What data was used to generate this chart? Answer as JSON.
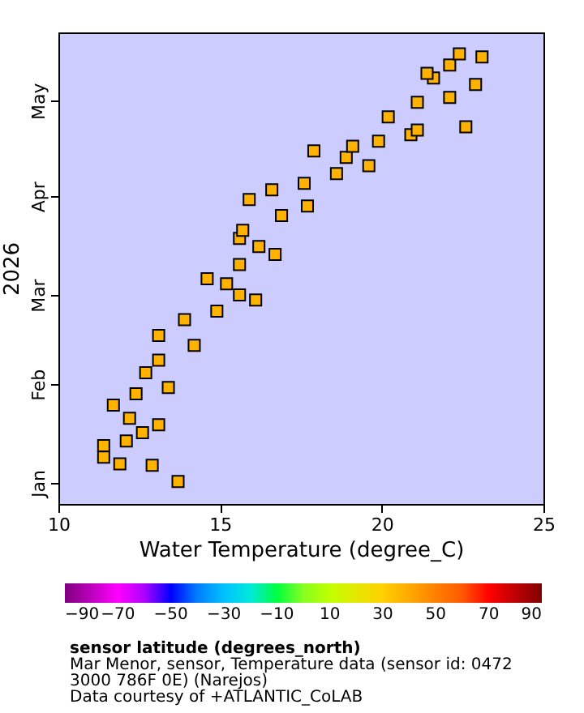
{
  "chart_data": {
    "type": "scatter",
    "xlabel": "Water Temperature (degree_C)",
    "ylabel": "2026",
    "clabel": "sensor latitude (degrees_north)",
    "annotations": [
      "Mar Menor, sensor, Temperature data (sensor id: 0472 3000 786F 0E) (Narejos)",
      "Data courtesy of +ATLANTIC_CoLAB"
    ],
    "xlim": [
      10,
      25
    ],
    "xticks": [
      10,
      15,
      20,
      25
    ],
    "ylim": [
      "2025-12-25T10:00",
      "2026-05-22T10:00"
    ],
    "yticks": [
      {
        "value": "2026-01-01",
        "label": "Jan"
      },
      {
        "value": "2026-02-01",
        "label": "Feb"
      },
      {
        "value": "2026-03-01",
        "label": "Mar"
      },
      {
        "value": "2026-04-01",
        "label": "Apr"
      },
      {
        "value": "2026-05-01",
        "label": "May"
      }
    ],
    "clim": [
      -90,
      90
    ],
    "cticks": [
      -90,
      -70,
      -50,
      -30,
      -10,
      10,
      30,
      50,
      70,
      90
    ],
    "marker": "square",
    "grid": false,
    "orientation": "horizontal",
    "x": [
      "2026-01-01T12:00",
      "2026-01-06T14:00",
      "2026-01-07T00:00",
      "2026-01-09T02:00",
      "2026-01-12T17:00",
      "2026-01-14T05:00",
      "2026-01-16T19:00",
      "2026-01-19T07:00",
      "2026-01-21T07:00",
      "2026-01-25T10:00",
      "2026-01-29T00:00",
      "2026-01-31T00:00",
      "2026-02-04T14:00",
      "2026-02-08T14:00",
      "2026-02-13T05:00",
      "2026-02-16T07:00",
      "2026-02-21T07:00",
      "2026-02-23T22:00",
      "2026-02-27T10:00",
      "2026-03-01T00:00",
      "2026-03-04T12:00",
      "2026-03-06T02:00",
      "2026-03-10T14:00",
      "2026-03-13T17:00",
      "2026-03-16T05:00",
      "2026-03-18T19:00",
      "2026-03-21T07:00",
      "2026-03-25T22:00",
      "2026-03-28T22:00",
      "2026-03-31T00:00",
      "2026-04-03T00:00",
      "2026-04-05T02:00",
      "2026-04-08T02:00",
      "2026-04-10T14:00",
      "2026-04-13T05:00",
      "2026-04-15T05:00",
      "2026-04-16T17:00",
      "2026-04-18T07:00",
      "2026-04-20T07:00",
      "2026-04-21T19:00",
      "2026-04-22T19:00",
      "2026-04-25T22:00",
      "2026-04-30T12:00",
      "2026-05-02T00:00",
      "2026-05-06T02:00",
      "2026-05-08T02:00",
      "2026-05-09T14:00",
      "2026-05-12T05:00",
      "2026-05-14T17:00",
      "2026-05-15T17:00"
    ],
    "values": [
      13.7,
      12.9,
      11.9,
      11.4,
      11.4,
      12.1,
      12.6,
      13.1,
      12.2,
      11.7,
      12.4,
      13.4,
      12.7,
      13.1,
      14.2,
      13.1,
      13.9,
      14.9,
      16.1,
      15.6,
      15.2,
      14.6,
      15.6,
      16.7,
      16.2,
      15.6,
      15.7,
      16.9,
      17.7,
      15.9,
      16.6,
      17.6,
      18.6,
      19.6,
      18.9,
      17.9,
      19.1,
      19.9,
      20.9,
      21.1,
      22.6,
      20.2,
      21.1,
      22.1,
      22.9,
      21.6,
      21.4,
      22.1,
      23.1,
      22.4
    ],
    "cvalues": [
      37.7,
      37.7,
      37.7,
      37.7,
      37.7,
      37.7,
      37.7,
      37.7,
      37.7,
      37.7,
      37.7,
      37.7,
      37.7,
      37.7,
      37.7,
      37.7,
      37.7,
      37.7,
      37.7,
      37.7,
      37.7,
      37.7,
      37.7,
      37.7,
      37.7,
      37.7,
      37.7,
      37.7,
      37.7,
      37.7,
      37.7,
      37.7,
      37.7,
      37.7,
      37.7,
      37.7,
      37.7,
      37.7,
      37.7,
      37.7,
      37.7,
      37.7,
      37.7,
      37.7,
      37.7,
      37.7,
      37.7,
      37.7,
      37.7,
      37.7
    ]
  }
}
